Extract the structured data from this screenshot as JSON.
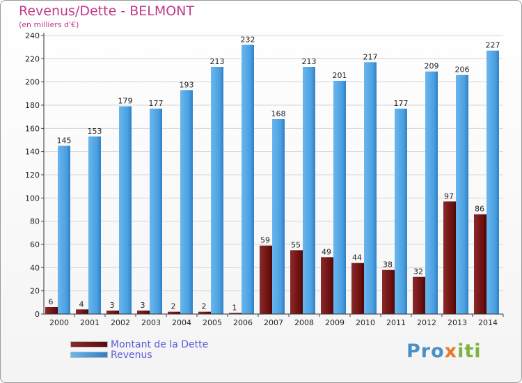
{
  "chart_data": {
    "type": "bar",
    "title": "Revenus/Dette - BELMONT",
    "subtitle": "(en milliers d'€)",
    "xlabel": "",
    "ylabel": "",
    "ylim": [
      0,
      240
    ],
    "yticks": [
      0,
      20,
      40,
      60,
      80,
      100,
      120,
      140,
      160,
      180,
      200,
      220,
      240
    ],
    "grid": true,
    "legend_position": "bottom-left",
    "categories": [
      "2000",
      "2001",
      "2002",
      "2003",
      "2004",
      "2005",
      "2006",
      "2007",
      "2008",
      "2009",
      "2010",
      "2011",
      "2012",
      "2013",
      "2014"
    ],
    "series": [
      {
        "name": "Montant de la Dette",
        "color": "#7a1212",
        "values": [
          6,
          4,
          3,
          3,
          2,
          2,
          1,
          59,
          55,
          49,
          44,
          38,
          32,
          97,
          86
        ]
      },
      {
        "name": "Revenus",
        "color": "#4fa5e6",
        "values": [
          145,
          153,
          179,
          177,
          193,
          213,
          232,
          168,
          213,
          201,
          217,
          177,
          209,
          206,
          227
        ]
      }
    ]
  },
  "logo": {
    "part1": "Pro",
    "part2": "x",
    "part3": "iti"
  }
}
